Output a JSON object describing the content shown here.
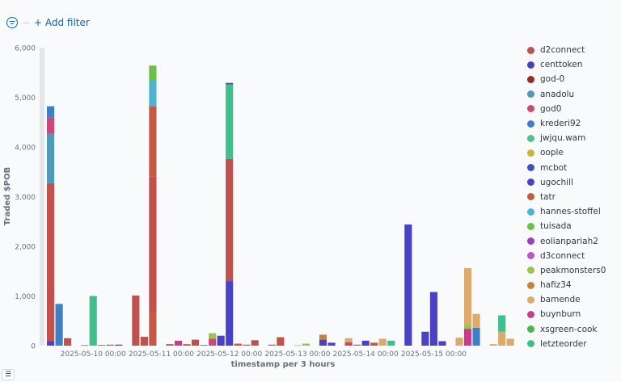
{
  "filter_bar": {
    "add_filter_label": "+ Add filter"
  },
  "legend": {
    "items": [
      {
        "label": "d2connect",
        "color": "#c1514c"
      },
      {
        "label": "centtoken",
        "color": "#4a3fbf"
      },
      {
        "label": "god-0",
        "color": "#9c2a2a"
      },
      {
        "label": "anadolu",
        "color": "#4e9ab8"
      },
      {
        "label": "god0",
        "color": "#c84a7a"
      },
      {
        "label": "krederi92",
        "color": "#3f7fc6"
      },
      {
        "label": "jwjqu.wam",
        "color": "#4fc38c"
      },
      {
        "label": "oople",
        "color": "#c9b43c"
      },
      {
        "label": "mcbot",
        "color": "#3f4fbf"
      },
      {
        "label": "ugochill",
        "color": "#4a42c4"
      },
      {
        "label": "tatr",
        "color": "#c25a45"
      },
      {
        "label": "hannes-stoffel",
        "color": "#4fb3cf"
      },
      {
        "label": "tuisada",
        "color": "#6cc04a"
      },
      {
        "label": "eolianpariah2",
        "color": "#9b3fc1"
      },
      {
        "label": "d3connect",
        "color": "#c054c4"
      },
      {
        "label": "peakmonsters0",
        "color": "#9ac452"
      },
      {
        "label": "hafiz34",
        "color": "#c6823c"
      },
      {
        "label": "bamende",
        "color": "#dcaa6a"
      },
      {
        "label": "buynburn",
        "color": "#c43f8a"
      },
      {
        "label": "xsgreen-cook",
        "color": "#45b84f"
      },
      {
        "label": "letzteorder",
        "color": "#3fbf8a"
      }
    ]
  },
  "chart_data": {
    "type": "bar",
    "stacked": true,
    "ylabel": "Traded $POB",
    "xlabel": "timestamp per 3 hours",
    "ylim": [
      0,
      6000
    ],
    "yticks": [
      0,
      1000,
      2000,
      3000,
      4000,
      5000,
      6000
    ],
    "ytick_labels": [
      "0",
      "1,000",
      "2,000",
      "3,000",
      "4,000",
      "5,000",
      "6,000"
    ],
    "x_tick_labels": [
      "2025-05-10 00:00",
      "2025-05-11 00:00",
      "2025-05-12 00:00",
      "2025-05-13 00:00",
      "2025-05-14 00:00",
      "2025-05-15 00:00"
    ],
    "x_tick_bar_index": [
      5,
      13,
      21,
      29,
      37,
      45
    ],
    "bar_count": 57,
    "bars": [
      [
        {
          "s": "ugochill",
          "v": 90
        },
        {
          "s": "d2connect",
          "v": 3180
        },
        {
          "s": "anadolu",
          "v": 1000
        },
        {
          "s": "god0",
          "v": 330
        },
        {
          "s": "krederi92",
          "v": 220
        }
      ],
      [
        {
          "s": "krederi92",
          "v": 840
        }
      ],
      [
        {
          "s": "d2connect",
          "v": 150
        }
      ],
      [],
      [
        {
          "s": "tatr",
          "v": 10
        }
      ],
      [
        {
          "s": "letzteorder",
          "v": 1000
        }
      ],
      [
        {
          "s": "tatr",
          "v": 15
        }
      ],
      [
        {
          "s": "tatr",
          "v": 20
        }
      ],
      [
        {
          "s": "ugochill",
          "v": 20
        }
      ],
      [],
      [
        {
          "s": "d2connect",
          "v": 1010
        }
      ],
      [
        {
          "s": "d2connect",
          "v": 180
        }
      ],
      [
        {
          "s": "tatr",
          "v": 640
        },
        {
          "s": "d2connect",
          "v": 2760
        },
        {
          "s": "tatr",
          "v": 1420
        },
        {
          "s": "hannes-stoffel",
          "v": 530
        },
        {
          "s": "tuisada",
          "v": 290
        }
      ],
      [],
      [
        {
          "s": "tatr",
          "v": 30
        }
      ],
      [
        {
          "s": "buynburn",
          "v": 100
        }
      ],
      [
        {
          "s": "tatr",
          "v": 30
        }
      ],
      [
        {
          "s": "d2connect",
          "v": 120
        }
      ],
      [
        {
          "s": "tatr",
          "v": 15
        }
      ],
      [
        {
          "s": "god0",
          "v": 140
        },
        {
          "s": "peakmonsters0",
          "v": 110
        }
      ],
      [
        {
          "s": "ugochill",
          "v": 200
        }
      ],
      [
        {
          "s": "ugochill",
          "v": 1300
        },
        {
          "s": "d2connect",
          "v": 2460
        },
        {
          "s": "letzteorder",
          "v": 1500
        },
        {
          "s": "ugochill",
          "v": 30
        }
      ],
      [
        {
          "s": "tatr",
          "v": 40
        }
      ],
      [
        {
          "s": "tatr",
          "v": 20
        }
      ],
      [
        {
          "s": "d2connect",
          "v": 110
        }
      ],
      [],
      [
        {
          "s": "tatr",
          "v": 20
        }
      ],
      [
        {
          "s": "d2connect",
          "v": 170
        }
      ],
      [],
      [
        {
          "s": "oople",
          "v": 10
        }
      ],
      [
        {
          "s": "peakmonsters0",
          "v": 40
        }
      ],
      [],
      [
        {
          "s": "ugochill",
          "v": 120
        },
        {
          "s": "hafiz34",
          "v": 100
        }
      ],
      [
        {
          "s": "ugochill",
          "v": 60
        }
      ],
      [],
      [
        {
          "s": "d2connect",
          "v": 70
        },
        {
          "s": "bamende",
          "v": 80
        }
      ],
      [
        {
          "s": "tatr",
          "v": 20
        }
      ],
      [
        {
          "s": "ugochill",
          "v": 100
        }
      ],
      [
        {
          "s": "tatr",
          "v": 60
        }
      ],
      [
        {
          "s": "bamende",
          "v": 140
        }
      ],
      [
        {
          "s": "letzteorder",
          "v": 100
        }
      ],
      [],
      [
        {
          "s": "ugochill",
          "v": 2440
        }
      ],
      [],
      [
        {
          "s": "ugochill",
          "v": 280
        }
      ],
      [
        {
          "s": "ugochill",
          "v": 1080
        }
      ],
      [
        {
          "s": "ugochill",
          "v": 90
        }
      ],
      [],
      [
        {
          "s": "bamende",
          "v": 160
        }
      ],
      [
        {
          "s": "buynburn",
          "v": 340
        },
        {
          "s": "peakmonsters0",
          "v": 80
        },
        {
          "s": "bamende",
          "v": 1140
        }
      ],
      [
        {
          "s": "krederi92",
          "v": 360
        },
        {
          "s": "bamende",
          "v": 280
        }
      ],
      [],
      [
        {
          "s": "bamende",
          "v": 30
        }
      ],
      [
        {
          "s": "bamende",
          "v": 280
        },
        {
          "s": "letzteorder",
          "v": 330
        }
      ],
      [
        {
          "s": "bamende",
          "v": 140
        }
      ],
      [],
      []
    ]
  }
}
